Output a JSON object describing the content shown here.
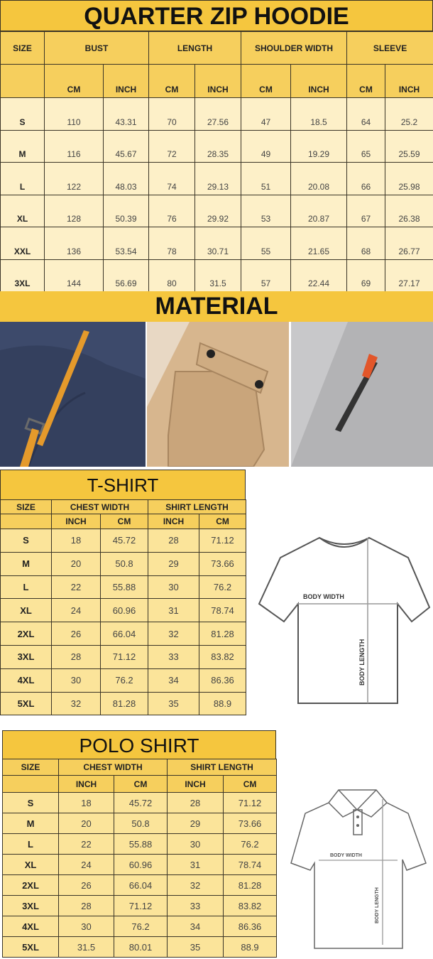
{
  "hoodie": {
    "title": "QUARTER ZIP HOODIE",
    "size_label": "SIZE",
    "groups": [
      "BUST",
      "LENGTH",
      "SHOULDER WIDTH",
      "SLEEVE"
    ],
    "units": [
      "CM",
      "INCH",
      "CM",
      "INCH",
      "CM",
      "INCH",
      "CM",
      "INCH"
    ],
    "rows": [
      [
        "S",
        "110",
        "43.31",
        "70",
        "27.56",
        "47",
        "18.5",
        "64",
        "25.2"
      ],
      [
        "M",
        "116",
        "45.67",
        "72",
        "28.35",
        "49",
        "19.29",
        "65",
        "25.59"
      ],
      [
        "L",
        "122",
        "48.03",
        "74",
        "29.13",
        "51",
        "20.08",
        "66",
        "25.98"
      ],
      [
        "XL",
        "128",
        "50.39",
        "76",
        "29.92",
        "53",
        "20.87",
        "67",
        "26.38"
      ],
      [
        "XXL",
        "136",
        "53.54",
        "78",
        "30.71",
        "55",
        "21.65",
        "68",
        "26.77"
      ],
      [
        "3XL",
        "144",
        "56.69",
        "80",
        "31.5",
        "57",
        "22.44",
        "69",
        "27.17"
      ]
    ]
  },
  "material": {
    "title": "MATERIAL"
  },
  "tshirt": {
    "title": "T-SHIRT",
    "size_label": "SIZE",
    "groups": [
      "CHEST WIDTH",
      "SHIRT LENGTH"
    ],
    "units": [
      "INCH",
      "CM",
      "INCH",
      "CM"
    ],
    "rows": [
      [
        "S",
        "18",
        "45.72",
        "28",
        "71.12"
      ],
      [
        "M",
        "20",
        "50.8",
        "29",
        "73.66"
      ],
      [
        "L",
        "22",
        "55.88",
        "30",
        "76.2"
      ],
      [
        "XL",
        "24",
        "60.96",
        "31",
        "78.74"
      ],
      [
        "2XL",
        "26",
        "66.04",
        "32",
        "81.28"
      ],
      [
        "3XL",
        "28",
        "71.12",
        "33",
        "83.82"
      ],
      [
        "4XL",
        "30",
        "76.2",
        "34",
        "86.36"
      ],
      [
        "5XL",
        "32",
        "81.28",
        "35",
        "88.9"
      ]
    ],
    "diagram": {
      "width_label": "BODY WIDTH",
      "length_label": "BODY LENGTH"
    }
  },
  "polo": {
    "title": "POLO SHIRT",
    "size_label": "SIZE",
    "groups": [
      "CHEST WIDTH",
      "SHIRT LENGTH"
    ],
    "units": [
      "INCH",
      "CM",
      "INCH",
      "CM"
    ],
    "rows": [
      [
        "S",
        "18",
        "45.72",
        "28",
        "71.12"
      ],
      [
        "M",
        "20",
        "50.8",
        "29",
        "73.66"
      ],
      [
        "L",
        "22",
        "55.88",
        "30",
        "76.2"
      ],
      [
        "XL",
        "24",
        "60.96",
        "31",
        "78.74"
      ],
      [
        "2XL",
        "26",
        "66.04",
        "32",
        "81.28"
      ],
      [
        "3XL",
        "28",
        "71.12",
        "33",
        "83.82"
      ],
      [
        "4XL",
        "30",
        "76.2",
        "34",
        "86.36"
      ],
      [
        "5XL",
        "31.5",
        "80.01",
        "35",
        "88.9"
      ]
    ],
    "diagram": {
      "width_label": "BODY WIDTH",
      "length_label": "BODY LENGTH"
    }
  },
  "colors": {
    "title_bg": "#f5c63e",
    "header_bg": "#f6cf5d",
    "cell_bg": "#fdf0c8"
  }
}
